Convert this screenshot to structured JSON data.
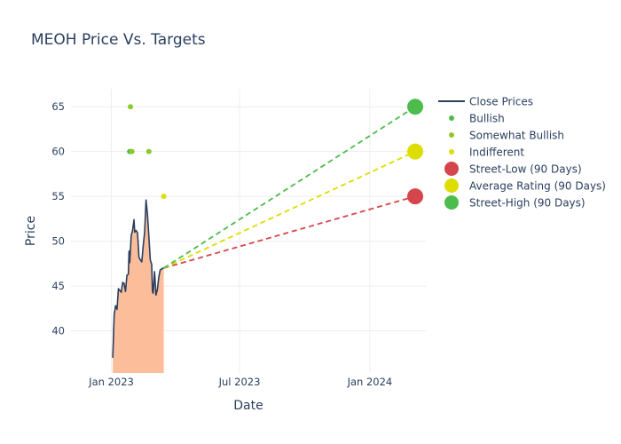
{
  "chart_data": {
    "type": "line",
    "title": "MEOH Price Vs. Targets",
    "xlabel": "Date",
    "ylabel": "Price",
    "x_ticks": [
      {
        "date": "2023-01-01",
        "label": "Jan 2023"
      },
      {
        "date": "2023-07-01",
        "label": "Jul 2023"
      },
      {
        "date": "2024-01-01",
        "label": "Jan 2024"
      }
    ],
    "y_ticks": [
      40,
      45,
      50,
      55,
      60,
      65
    ],
    "xlim": [
      "2022-11-05",
      "2024-03-20"
    ],
    "ylim": [
      35.3,
      67
    ],
    "fill_baseline": 35.3,
    "grid": true,
    "legend_position": "right",
    "colors": {
      "close": "#2a3f5f",
      "fill": "#fbbd9a",
      "bullish": "#4cbc4c",
      "somewhat_bullish": "#8ec92c",
      "indifferent": "#dddd00",
      "street_low": "#d4464c",
      "average": "#dddd00",
      "street_high": "#4cbc4c",
      "grid": "#eeeeee"
    },
    "close_prices": [
      [
        "2023-01-03",
        37.0
      ],
      [
        "2023-01-05",
        41.8
      ],
      [
        "2023-01-07",
        42.8
      ],
      [
        "2023-01-09",
        42.4
      ],
      [
        "2023-01-11",
        44.7
      ],
      [
        "2023-01-13",
        44.5
      ],
      [
        "2023-01-15",
        44.3
      ],
      [
        "2023-01-17",
        45.4
      ],
      [
        "2023-01-19",
        45.3
      ],
      [
        "2023-01-21",
        44.4
      ],
      [
        "2023-01-23",
        46.2
      ],
      [
        "2023-01-25",
        46.3
      ],
      [
        "2023-01-26",
        48.9
      ],
      [
        "2023-01-27",
        47.6
      ],
      [
        "2023-01-29",
        50.6
      ],
      [
        "2023-01-31",
        51.2
      ],
      [
        "2023-02-02",
        52.4
      ],
      [
        "2023-02-03",
        51.0
      ],
      [
        "2023-02-05",
        51.2
      ],
      [
        "2023-02-07",
        50.9
      ],
      [
        "2023-02-09",
        48.2
      ],
      [
        "2023-02-11",
        47.9
      ],
      [
        "2023-02-13",
        47.7
      ],
      [
        "2023-02-15",
        49.5
      ],
      [
        "2023-02-17",
        51.0
      ],
      [
        "2023-02-19",
        54.6
      ],
      [
        "2023-02-21",
        53.0
      ],
      [
        "2023-02-23",
        50.5
      ],
      [
        "2023-02-25",
        47.9
      ],
      [
        "2023-02-27",
        47.4
      ],
      [
        "2023-02-28",
        44.4
      ],
      [
        "2023-03-01",
        44.2
      ],
      [
        "2023-03-03",
        46.6
      ],
      [
        "2023-03-05",
        44.0
      ],
      [
        "2023-03-07",
        44.6
      ],
      [
        "2023-03-09",
        46.0
      ],
      [
        "2023-03-11",
        46.8
      ],
      [
        "2023-03-13",
        46.9
      ],
      [
        "2023-03-15",
        47.0
      ],
      [
        "2023-03-16",
        47.0
      ]
    ],
    "ratings": [
      {
        "series": "Bullish",
        "date": "2023-01-27",
        "value": 60
      },
      {
        "series": "Somewhat Bullish",
        "date": "2023-01-30",
        "value": 60
      },
      {
        "series": "Somewhat Bullish",
        "date": "2023-01-28",
        "value": 65
      },
      {
        "series": "Somewhat Bullish",
        "date": "2023-02-23",
        "value": 60
      },
      {
        "series": "Indifferent",
        "date": "2023-03-16",
        "value": 55
      }
    ],
    "targets": {
      "start": {
        "date": "2023-03-16",
        "value": 47.0
      },
      "end_date": "2024-03-05",
      "street_low": 55,
      "average": 60,
      "street_high": 65
    },
    "legend": [
      "Close Prices",
      "Bullish",
      "Somewhat Bullish",
      "Indifferent",
      "Street-Low (90 Days)",
      "Average Rating (90 Days)",
      "Street-High (90 Days)"
    ]
  }
}
